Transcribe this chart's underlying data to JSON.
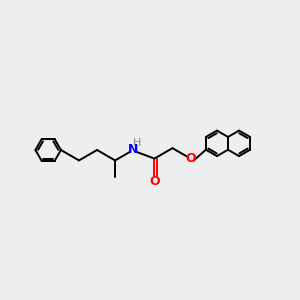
{
  "background_color": "#eeeeee",
  "bond_color": "#000000",
  "N_color": "#0000ff",
  "O_color": "#ff0000",
  "H_color": "#888888",
  "line_width": 1.4,
  "font_size": 8.5,
  "fig_width": 3.0,
  "fig_height": 3.0,
  "dpi": 100,
  "xlim": [
    0,
    12
  ],
  "ylim": [
    0,
    12
  ]
}
